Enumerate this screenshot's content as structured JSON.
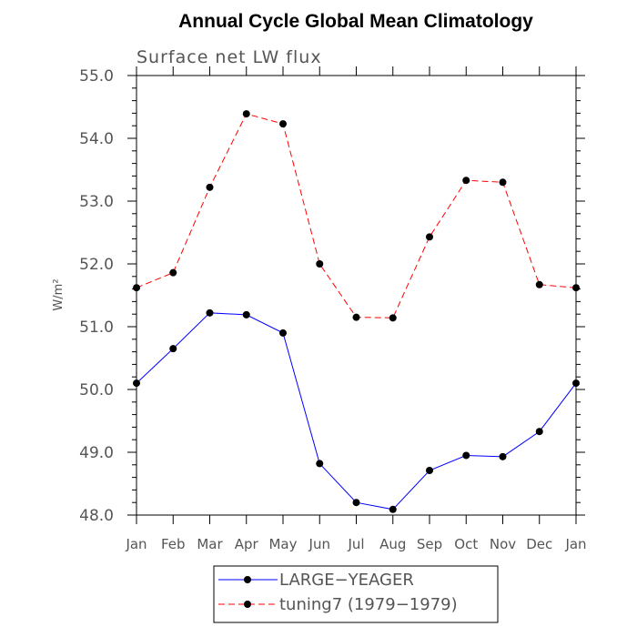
{
  "chart_data": {
    "type": "line",
    "title": "Annual Cycle Global Mean Climatology",
    "subtitle": "Surface net LW flux",
    "ylabel": "W/m²",
    "xlabel": "",
    "ylim": [
      48.0,
      55.0
    ],
    "yticks": [
      "48.0",
      "49.0",
      "50.0",
      "51.0",
      "52.0",
      "53.0",
      "54.0",
      "55.0"
    ],
    "categories": [
      "Jan",
      "Feb",
      "Mar",
      "Apr",
      "May",
      "Jun",
      "Jul",
      "Aug",
      "Sep",
      "Oct",
      "Nov",
      "Dec",
      "Jan"
    ],
    "grid": false,
    "legend_position": "bottom-center",
    "series": [
      {
        "name": "LARGE−YEAGER",
        "color": "#0000ff",
        "dash": "solid",
        "marker": "filled-circle",
        "values": [
          50.1,
          50.65,
          51.22,
          51.19,
          50.9,
          48.82,
          48.2,
          48.09,
          48.71,
          48.95,
          48.93,
          49.33,
          50.1
        ]
      },
      {
        "name": "tuning7 (1979−1979)",
        "color": "#ff0000",
        "dash": "dashed",
        "marker": "filled-circle",
        "values": [
          51.62,
          51.86,
          53.22,
          54.39,
          54.23,
          52.0,
          51.15,
          51.14,
          52.43,
          53.33,
          53.3,
          51.67,
          51.62
        ]
      }
    ]
  }
}
